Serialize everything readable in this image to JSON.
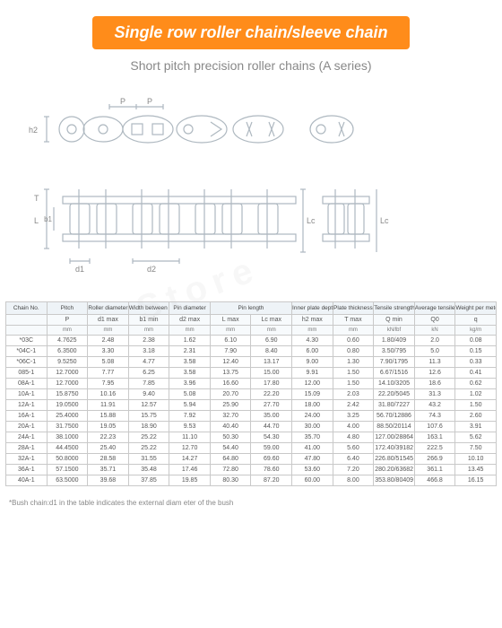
{
  "title": "Single row roller chain/sleeve chain",
  "subtitle": "Short pitch precision roller chains (A series)",
  "footnote": "*Bush chain:d1 in the table indicates the external diam eter of the bush",
  "diagram_labels": {
    "P": "P",
    "h2": "h2",
    "T": "T",
    "L": "L",
    "b1": "b1",
    "d1": "d1",
    "d2": "d2",
    "Lc": "Lc"
  },
  "colors": {
    "badge": "#ff8c1a",
    "line": "#aeb8c0",
    "text": "#555"
  },
  "columns_row1": [
    "Chain No.",
    "Pitch",
    "Roller diameter",
    "Width between inner plates",
    "Pin diameter",
    "Pin length",
    "",
    "Inner plate depth",
    "Plate thickness",
    "Tensile strength",
    "Average tensile strength",
    "Weight per meter"
  ],
  "columns_row2": [
    "",
    "P",
    "d1 max",
    "b1 min",
    "d2 max",
    "L max",
    "Lc max",
    "h2 max",
    "T max",
    "Q min",
    "Q0",
    "q"
  ],
  "columns_row3": [
    "",
    "mm",
    "mm",
    "mm",
    "mm",
    "mm",
    "mm",
    "mm",
    "mm",
    "kN/lbf",
    "kN",
    "kg/m"
  ],
  "rows": [
    [
      "*03C",
      "4.7625",
      "2.48",
      "2.38",
      "1.62",
      "6.10",
      "6.90",
      "4.30",
      "0.60",
      "1.80/409",
      "2.0",
      "0.08"
    ],
    [
      "*04C-1",
      "6.3500",
      "3.30",
      "3.18",
      "2.31",
      "7.90",
      "8.40",
      "6.00",
      "0.80",
      "3.50/795",
      "5.0",
      "0.15"
    ],
    [
      "*06C-1",
      "9.5250",
      "5.08",
      "4.77",
      "3.58",
      "12.40",
      "13.17",
      "9.00",
      "1.30",
      "7.90/1795",
      "11.3",
      "0.33"
    ],
    [
      "085-1",
      "12.7000",
      "7.77",
      "6.25",
      "3.58",
      "13.75",
      "15.00",
      "9.91",
      "1.50",
      "6.67/1516",
      "12.6",
      "0.41"
    ],
    [
      "08A-1",
      "12.7000",
      "7.95",
      "7.85",
      "3.96",
      "16.60",
      "17.80",
      "12.00",
      "1.50",
      "14.10/3205",
      "18.6",
      "0.62"
    ],
    [
      "10A-1",
      "15.8750",
      "10.16",
      "9.40",
      "5.08",
      "20.70",
      "22.20",
      "15.09",
      "2.03",
      "22.20/5045",
      "31.3",
      "1.02"
    ],
    [
      "12A-1",
      "19.0500",
      "11.91",
      "12.57",
      "5.94",
      "25.90",
      "27.70",
      "18.00",
      "2.42",
      "31.80/7227",
      "43.2",
      "1.50"
    ],
    [
      "16A-1",
      "25.4000",
      "15.88",
      "15.75",
      "7.92",
      "32.70",
      "35.00",
      "24.00",
      "3.25",
      "56.70/12886",
      "74.3",
      "2.60"
    ],
    [
      "20A-1",
      "31.7500",
      "19.05",
      "18.90",
      "9.53",
      "40.40",
      "44.70",
      "30.00",
      "4.00",
      "88.50/20114",
      "107.6",
      "3.91"
    ],
    [
      "24A-1",
      "38.1000",
      "22.23",
      "25.22",
      "11.10",
      "50.30",
      "54.30",
      "35.70",
      "4.80",
      "127.00/28864",
      "163.1",
      "5.62"
    ],
    [
      "28A-1",
      "44.4500",
      "25.40",
      "25.22",
      "12.70",
      "54.40",
      "59.00",
      "41.00",
      "5.60",
      "172.40/39182",
      "222.5",
      "7.50"
    ],
    [
      "32A-1",
      "50.8000",
      "28.58",
      "31.55",
      "14.27",
      "64.80",
      "69.60",
      "47.80",
      "6.40",
      "226.80/51545",
      "266.9",
      "10.10"
    ],
    [
      "36A-1",
      "57.1500",
      "35.71",
      "35.48",
      "17.46",
      "72.80",
      "78.60",
      "53.60",
      "7.20",
      "280.20/63682",
      "361.1",
      "13.45"
    ],
    [
      "40A-1",
      "63.5000",
      "39.68",
      "37.85",
      "19.85",
      "80.30",
      "87.20",
      "60.00",
      "8.00",
      "353.80/80409",
      "466.8",
      "16.15"
    ]
  ]
}
